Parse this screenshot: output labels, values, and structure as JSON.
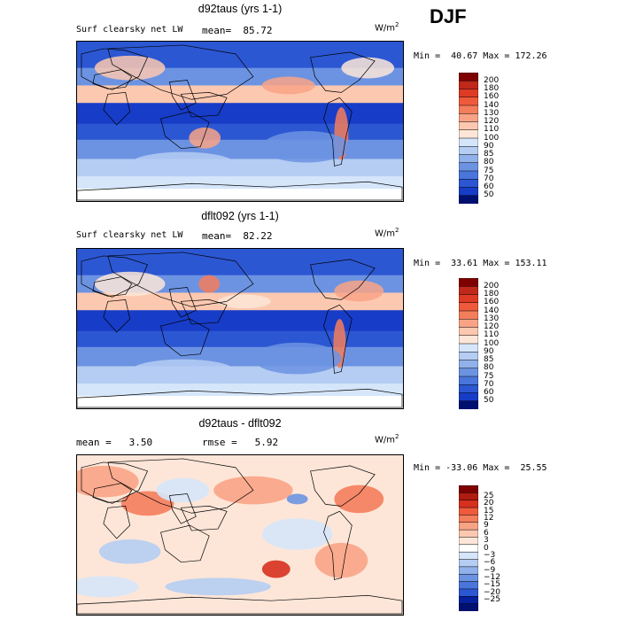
{
  "season": "DJF",
  "units_base": "W/m",
  "units_exp": "2",
  "palette": [
    "#7f0000",
    "#b01c12",
    "#d7301f",
    "#ef5a3c",
    "#f47d5c",
    "#f9a386",
    "#fcc8b0",
    "#fde6d8",
    "#ffffff",
    "#d6e6fa",
    "#b5cdf3",
    "#90b1ea",
    "#6c93e2",
    "#4a75db",
    "#2c57d3",
    "#173cc7",
    "#05209e",
    "#001070"
  ],
  "chart_data": [
    {
      "type": "heatmap",
      "title": "d92taus (yrs 1-1)",
      "subtitle": "Surf clearsky net LW",
      "stat1_label": "mean=",
      "stat1_value": "85.72",
      "stat2_label": "",
      "stat2_value": "",
      "min_label": "Min =",
      "min": "40.67",
      "max_label": "Max =",
      "max": "172.26",
      "colorbar_levels": [
        "200",
        "180",
        "160",
        "140",
        "130",
        "120",
        "110",
        "100",
        "90",
        "85",
        "80",
        "75",
        "70",
        "60",
        "50"
      ],
      "colorbar_colors": [
        "#7f0000",
        "#c0281a",
        "#de3b24",
        "#ef5a3c",
        "#f47d5c",
        "#f9a386",
        "#fcc8b0",
        "#fde6d8",
        "#d6e6fa",
        "#b5cdf3",
        "#90b1ea",
        "#6c93e2",
        "#4a75db",
        "#2c57d3",
        "#173cc7",
        "#001070"
      ]
    },
    {
      "type": "heatmap",
      "title": "dflt092 (yrs 1-1)",
      "subtitle": "Surf clearsky net LW",
      "stat1_label": "mean=",
      "stat1_value": "82.22",
      "stat2_label": "",
      "stat2_value": "",
      "min_label": "Min =",
      "min": "33.61",
      "max_label": "Max =",
      "max": "153.11",
      "colorbar_levels": [
        "200",
        "180",
        "160",
        "140",
        "130",
        "120",
        "110",
        "100",
        "90",
        "85",
        "80",
        "75",
        "70",
        "60",
        "50"
      ],
      "colorbar_colors": [
        "#7f0000",
        "#c0281a",
        "#de3b24",
        "#ef5a3c",
        "#f47d5c",
        "#f9a386",
        "#fcc8b0",
        "#fde6d8",
        "#d6e6fa",
        "#b5cdf3",
        "#90b1ea",
        "#6c93e2",
        "#4a75db",
        "#2c57d3",
        "#173cc7",
        "#001070"
      ]
    },
    {
      "type": "heatmap",
      "title": "d92taus - dflt092",
      "subtitle": "",
      "stat1_label": "mean =",
      "stat1_value": "3.50",
      "stat2_label": "rmse =",
      "stat2_value": "5.92",
      "min_label": "Min =",
      "min": "-33.06",
      "max_label": "Max =",
      "max": "25.55",
      "colorbar_levels": [
        "25",
        "20",
        "15",
        "12",
        "9",
        "6",
        "3",
        "0",
        "-3",
        "-6",
        "-9",
        "-12",
        "-15",
        "-20",
        "-25"
      ],
      "colorbar_colors": [
        "#7f0000",
        "#b01c12",
        "#d7301f",
        "#ef5a3c",
        "#f47d5c",
        "#f9a386",
        "#fcc8b0",
        "#fde6d8",
        "#ffffff",
        "#d6e6fa",
        "#b5cdf3",
        "#90b1ea",
        "#6c93e2",
        "#4a75db",
        "#2c57d3",
        "#05209e",
        "#001070"
      ]
    }
  ]
}
